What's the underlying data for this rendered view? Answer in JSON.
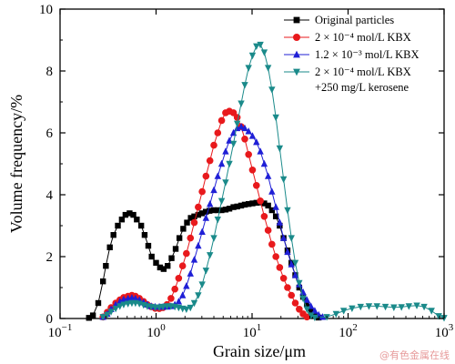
{
  "chart_data": {
    "type": "line",
    "xlabel": "Grain size/μm",
    "ylabel": "Volume frequency/%",
    "xscale": "log",
    "xlim": [
      0.1,
      1000
    ],
    "ylim": [
      0,
      10
    ],
    "x_ticks": [
      {
        "value": 0.1,
        "base": "10",
        "exp": "−1"
      },
      {
        "value": 1,
        "base": "10",
        "exp": "0"
      },
      {
        "value": 10,
        "base": "10",
        "exp": "1"
      },
      {
        "value": 100,
        "base": "10",
        "exp": "2"
      },
      {
        "value": 1000,
        "base": "10",
        "exp": "3"
      }
    ],
    "y_ticks": [
      0,
      2,
      4,
      6,
      8,
      10
    ],
    "legend_position": "top-right",
    "series": [
      {
        "name": "Original particles",
        "color": "#000000",
        "marker": "square",
        "points": [
          [
            0.2,
            0.02
          ],
          [
            0.22,
            0.1
          ],
          [
            0.25,
            0.5
          ],
          [
            0.28,
            1.2
          ],
          [
            0.3,
            1.7
          ],
          [
            0.33,
            2.3
          ],
          [
            0.36,
            2.7
          ],
          [
            0.4,
            3.0
          ],
          [
            0.44,
            3.2
          ],
          [
            0.48,
            3.35
          ],
          [
            0.53,
            3.4
          ],
          [
            0.58,
            3.35
          ],
          [
            0.63,
            3.2
          ],
          [
            0.7,
            3.0
          ],
          [
            0.76,
            2.7
          ],
          [
            0.83,
            2.35
          ],
          [
            0.9,
            2.0
          ],
          [
            1.0,
            1.8
          ],
          [
            1.1,
            1.65
          ],
          [
            1.2,
            1.6
          ],
          [
            1.32,
            1.7
          ],
          [
            1.45,
            1.95
          ],
          [
            1.6,
            2.25
          ],
          [
            1.75,
            2.6
          ],
          [
            1.92,
            2.9
          ],
          [
            2.1,
            3.1
          ],
          [
            2.3,
            3.25
          ],
          [
            2.5,
            3.3
          ],
          [
            2.75,
            3.35
          ],
          [
            3.0,
            3.4
          ],
          [
            3.3,
            3.45
          ],
          [
            3.6,
            3.48
          ],
          [
            4.0,
            3.5
          ],
          [
            4.4,
            3.5
          ],
          [
            4.8,
            3.5
          ],
          [
            5.3,
            3.52
          ],
          [
            5.8,
            3.55
          ],
          [
            6.4,
            3.6
          ],
          [
            7.0,
            3.62
          ],
          [
            7.7,
            3.65
          ],
          [
            8.4,
            3.68
          ],
          [
            9.2,
            3.7
          ],
          [
            10.1,
            3.72
          ],
          [
            11.1,
            3.74
          ],
          [
            12.2,
            3.75
          ],
          [
            13.4,
            3.72
          ],
          [
            14.7,
            3.65
          ],
          [
            16.1,
            3.5
          ],
          [
            17.7,
            3.3
          ],
          [
            19.4,
            3.0
          ],
          [
            21.3,
            2.6
          ],
          [
            23.4,
            2.2
          ],
          [
            25.7,
            1.8
          ],
          [
            28.2,
            1.4
          ],
          [
            31.0,
            1.0
          ],
          [
            34.0,
            0.7
          ],
          [
            37.3,
            0.45
          ],
          [
            41.0,
            0.25
          ],
          [
            45.0,
            0.1
          ],
          [
            49.4,
            0.03
          ]
        ]
      },
      {
        "name": "2 × 10⁻⁴ mol/L KBX",
        "color": "#e8191c",
        "marker": "circle",
        "points": [
          [
            0.28,
            0.05
          ],
          [
            0.31,
            0.2
          ],
          [
            0.34,
            0.35
          ],
          [
            0.38,
            0.5
          ],
          [
            0.42,
            0.6
          ],
          [
            0.46,
            0.68
          ],
          [
            0.51,
            0.72
          ],
          [
            0.56,
            0.75
          ],
          [
            0.61,
            0.72
          ],
          [
            0.67,
            0.65
          ],
          [
            0.74,
            0.55
          ],
          [
            0.81,
            0.45
          ],
          [
            0.89,
            0.38
          ],
          [
            0.98,
            0.33
          ],
          [
            1.08,
            0.32
          ],
          [
            1.18,
            0.35
          ],
          [
            1.3,
            0.45
          ],
          [
            1.43,
            0.65
          ],
          [
            1.57,
            0.95
          ],
          [
            1.72,
            1.3
          ],
          [
            1.89,
            1.7
          ],
          [
            2.07,
            2.1
          ],
          [
            2.28,
            2.6
          ],
          [
            2.5,
            3.1
          ],
          [
            2.75,
            3.6
          ],
          [
            3.02,
            4.1
          ],
          [
            3.31,
            4.6
          ],
          [
            3.64,
            5.1
          ],
          [
            4.0,
            5.6
          ],
          [
            4.39,
            6.0
          ],
          [
            4.82,
            6.4
          ],
          [
            5.3,
            6.65
          ],
          [
            5.8,
            6.7
          ],
          [
            6.4,
            6.65
          ],
          [
            7.0,
            6.5
          ],
          [
            7.7,
            6.2
          ],
          [
            8.4,
            5.8
          ],
          [
            9.2,
            5.3
          ],
          [
            10.1,
            4.8
          ],
          [
            11.1,
            4.3
          ],
          [
            12.2,
            3.8
          ],
          [
            13.4,
            3.3
          ],
          [
            14.7,
            2.85
          ],
          [
            16.1,
            2.4
          ],
          [
            17.7,
            2.0
          ],
          [
            19.4,
            1.65
          ],
          [
            21.3,
            1.3
          ],
          [
            23.4,
            1.0
          ],
          [
            25.7,
            0.75
          ],
          [
            28.2,
            0.5
          ],
          [
            31.0,
            0.3
          ],
          [
            34.0,
            0.15
          ],
          [
            37.3,
            0.05
          ]
        ]
      },
      {
        "name": "1.2 × 10⁻³ mol/L KBX",
        "color": "#1f1fd6",
        "marker": "triangle-up",
        "points": [
          [
            0.28,
            0.05
          ],
          [
            0.31,
            0.15
          ],
          [
            0.34,
            0.3
          ],
          [
            0.38,
            0.45
          ],
          [
            0.42,
            0.55
          ],
          [
            0.46,
            0.62
          ],
          [
            0.51,
            0.65
          ],
          [
            0.56,
            0.67
          ],
          [
            0.61,
            0.65
          ],
          [
            0.67,
            0.6
          ],
          [
            0.74,
            0.52
          ],
          [
            0.81,
            0.45
          ],
          [
            0.89,
            0.4
          ],
          [
            0.98,
            0.38
          ],
          [
            1.08,
            0.38
          ],
          [
            1.18,
            0.38
          ],
          [
            1.3,
            0.38
          ],
          [
            1.43,
            0.4
          ],
          [
            1.57,
            0.45
          ],
          [
            1.72,
            0.55
          ],
          [
            1.89,
            0.75
          ],
          [
            2.07,
            1.05
          ],
          [
            2.28,
            1.45
          ],
          [
            2.5,
            1.9
          ],
          [
            2.75,
            2.35
          ],
          [
            3.02,
            2.8
          ],
          [
            3.31,
            3.25
          ],
          [
            3.64,
            3.7
          ],
          [
            4.0,
            4.15
          ],
          [
            4.39,
            4.6
          ],
          [
            4.82,
            5.0
          ],
          [
            5.3,
            5.4
          ],
          [
            5.8,
            5.75
          ],
          [
            6.4,
            6.0
          ],
          [
            7.0,
            6.15
          ],
          [
            7.7,
            6.2
          ],
          [
            8.4,
            6.15
          ],
          [
            9.2,
            6.05
          ],
          [
            10.1,
            5.9
          ],
          [
            11.1,
            5.7
          ],
          [
            12.2,
            5.4
          ],
          [
            13.4,
            5.0
          ],
          [
            14.7,
            4.6
          ],
          [
            16.1,
            4.1
          ],
          [
            17.7,
            3.6
          ],
          [
            19.4,
            3.1
          ],
          [
            21.3,
            2.6
          ],
          [
            23.4,
            2.15
          ],
          [
            25.7,
            1.75
          ],
          [
            28.2,
            1.4
          ],
          [
            31.0,
            1.1
          ],
          [
            34.0,
            0.85
          ],
          [
            37.3,
            0.6
          ],
          [
            41.0,
            0.4
          ],
          [
            45.0,
            0.25
          ],
          [
            49.4,
            0.12
          ],
          [
            54.2,
            0.05
          ]
        ]
      },
      {
        "name": "2 × 10⁻⁴ mol/L KBX",
        "name2": "+250 mg/L kerosene",
        "color": "#1a8a8a",
        "marker": "triangle-down",
        "points": [
          [
            0.28,
            0.05
          ],
          [
            0.31,
            0.12
          ],
          [
            0.34,
            0.22
          ],
          [
            0.38,
            0.32
          ],
          [
            0.42,
            0.4
          ],
          [
            0.46,
            0.45
          ],
          [
            0.51,
            0.48
          ],
          [
            0.56,
            0.5
          ],
          [
            0.61,
            0.5
          ],
          [
            0.67,
            0.48
          ],
          [
            0.74,
            0.44
          ],
          [
            0.81,
            0.4
          ],
          [
            0.89,
            0.38
          ],
          [
            0.98,
            0.36
          ],
          [
            1.08,
            0.36
          ],
          [
            1.18,
            0.38
          ],
          [
            1.3,
            0.4
          ],
          [
            1.43,
            0.4
          ],
          [
            1.57,
            0.38
          ],
          [
            1.72,
            0.35
          ],
          [
            1.89,
            0.32
          ],
          [
            2.07,
            0.3
          ],
          [
            2.28,
            0.35
          ],
          [
            2.5,
            0.5
          ],
          [
            2.75,
            0.75
          ],
          [
            3.02,
            1.1
          ],
          [
            3.31,
            1.55
          ],
          [
            3.64,
            2.05
          ],
          [
            4.0,
            2.6
          ],
          [
            4.39,
            3.2
          ],
          [
            4.82,
            3.8
          ],
          [
            5.3,
            4.4
          ],
          [
            5.8,
            5.0
          ],
          [
            6.4,
            5.65
          ],
          [
            7.0,
            6.3
          ],
          [
            7.7,
            6.95
          ],
          [
            8.4,
            7.55
          ],
          [
            9.2,
            8.1
          ],
          [
            10.1,
            8.5
          ],
          [
            11.1,
            8.8
          ],
          [
            12.2,
            8.85
          ],
          [
            13.4,
            8.6
          ],
          [
            14.7,
            8.1
          ],
          [
            16.1,
            7.4
          ],
          [
            17.7,
            6.5
          ],
          [
            19.4,
            5.5
          ],
          [
            21.3,
            4.5
          ],
          [
            23.4,
            3.5
          ],
          [
            25.7,
            2.6
          ],
          [
            28.2,
            1.8
          ],
          [
            31.0,
            1.15
          ],
          [
            34.0,
            0.65
          ],
          [
            37.3,
            0.3
          ],
          [
            41.0,
            0.1
          ],
          [
            45.0,
            0.03
          ],
          [
            60,
            0.05
          ],
          [
            75,
            0.15
          ],
          [
            90,
            0.25
          ],
          [
            110,
            0.33
          ],
          [
            135,
            0.38
          ],
          [
            165,
            0.4
          ],
          [
            200,
            0.4
          ],
          [
            245,
            0.38
          ],
          [
            300,
            0.36
          ],
          [
            360,
            0.37
          ],
          [
            430,
            0.4
          ],
          [
            520,
            0.42
          ],
          [
            620,
            0.38
          ],
          [
            740,
            0.25
          ],
          [
            880,
            0.08
          ],
          [
            1000,
            0.02
          ]
        ]
      }
    ]
  },
  "watermark": "@有色金属在线"
}
